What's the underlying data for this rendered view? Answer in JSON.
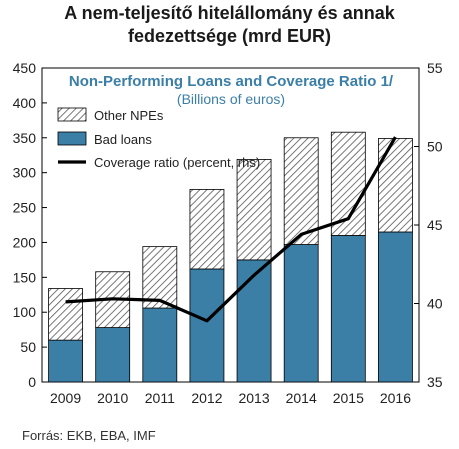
{
  "header": {
    "title_line1": "A nem-teljesítő hitelállomány és annak",
    "title_line2": "fedezettsége (mrd EUR)"
  },
  "footer": {
    "source": "Forrás: EKB, EBA, IMF"
  },
  "chart_data": {
    "type": "bar",
    "inner_title": "Non-Performing Loans and Coverage Ratio 1/",
    "inner_subtitle": "(Billions of euros)",
    "categories": [
      "2009",
      "2010",
      "2011",
      "2012",
      "2013",
      "2014",
      "2015",
      "2016"
    ],
    "stacked": true,
    "series": [
      {
        "name": "Bad loans",
        "type": "bar",
        "axis": "left",
        "color": "#3b7fa7",
        "values": [
          60,
          78,
          106,
          162,
          175,
          197,
          210,
          215
        ]
      },
      {
        "name": "Other NPEs",
        "type": "bar",
        "axis": "left",
        "pattern": "diagonal-hatch",
        "values": [
          74,
          80,
          88,
          114,
          144,
          153,
          148,
          134
        ]
      },
      {
        "name": "Coverage ratio (percent, rhs)",
        "type": "line",
        "axis": "right",
        "color": "#000000",
        "values": [
          40.1,
          40.3,
          40.2,
          38.9,
          41.8,
          44.4,
          45.4,
          50.6
        ]
      }
    ],
    "ylim_left": [
      0,
      450
    ],
    "yticks_left": [
      0,
      50,
      100,
      150,
      200,
      250,
      300,
      350,
      400,
      450
    ],
    "ylim_right": [
      35,
      55
    ],
    "yticks_right": [
      35,
      40,
      45,
      50,
      55
    ],
    "legend_position": "top-left",
    "grid": false
  }
}
